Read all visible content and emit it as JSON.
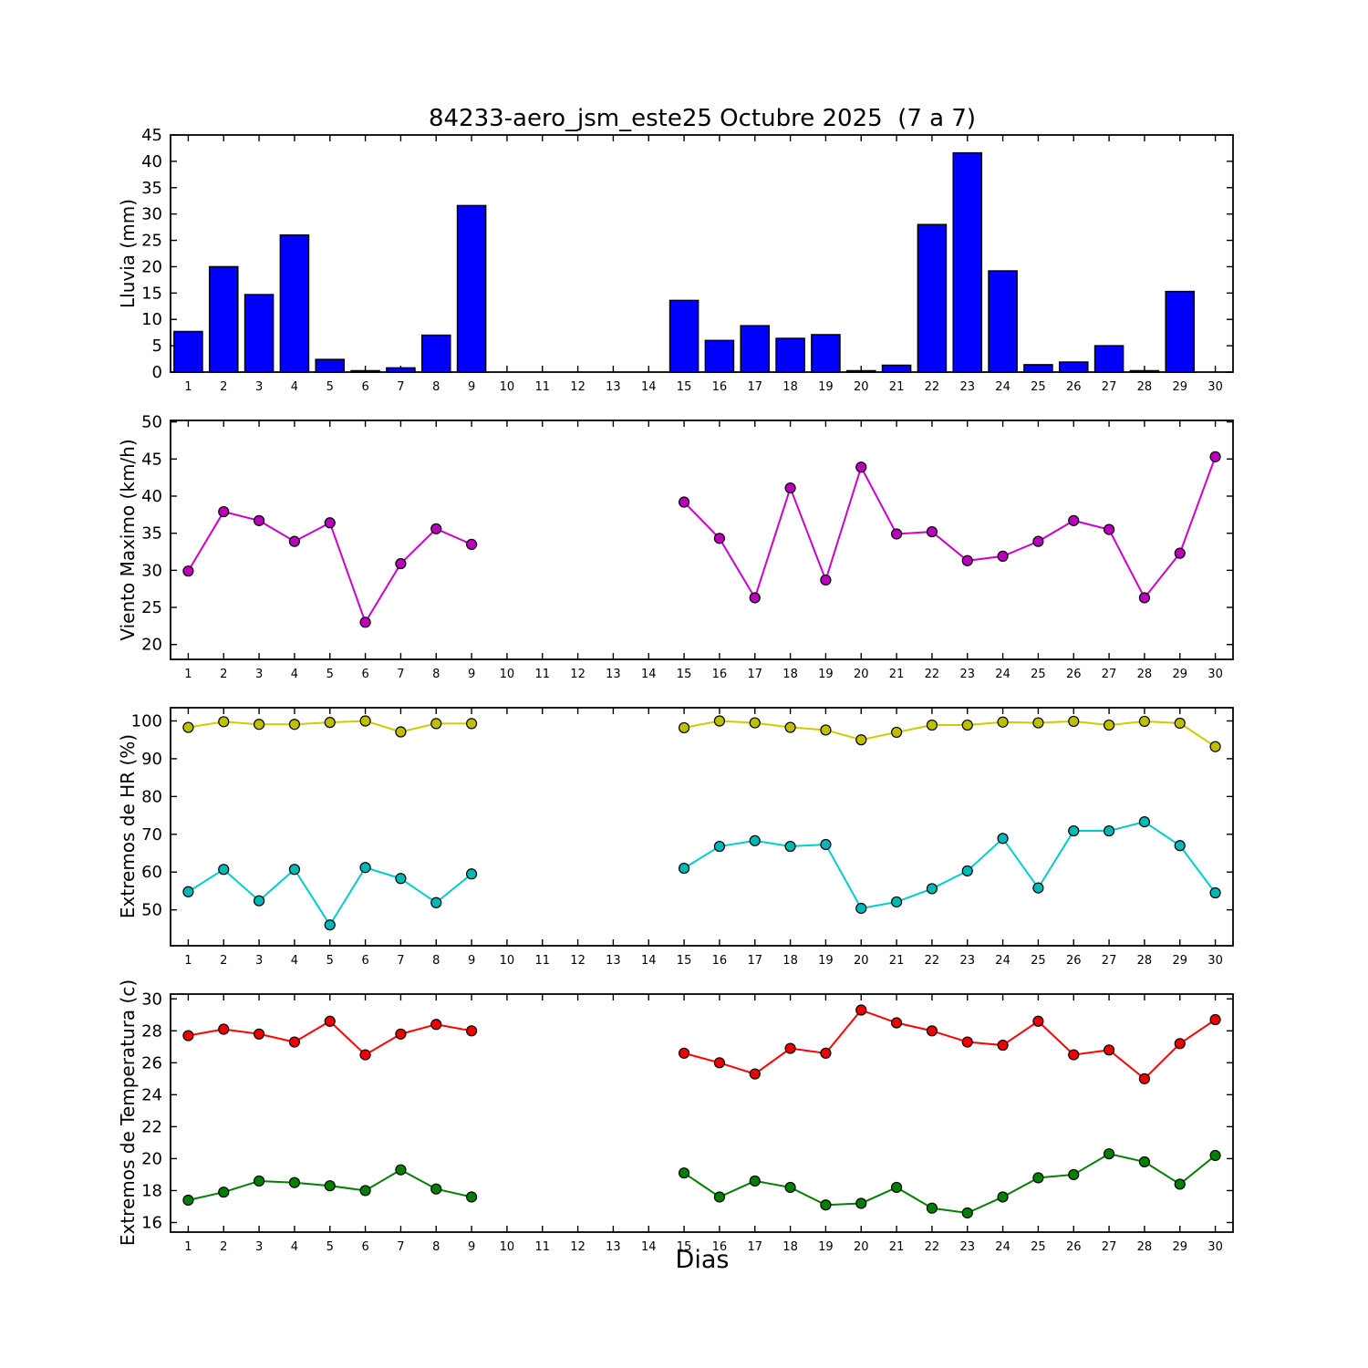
{
  "chart_meta": {
    "title": "84233-aero_jsm_este25 Octubre 2025  (7 a 7)",
    "xlabel": "Dias",
    "background": "#ffffff",
    "axis_color": "#000000",
    "grid": "off",
    "legend": "none"
  },
  "chart_data": [
    {
      "type": "bar",
      "ylabel": "Lluvia (mm)",
      "ylim": [
        0,
        45
      ],
      "yticks": [
        0,
        5,
        10,
        15,
        20,
        25,
        30,
        35,
        40,
        45
      ],
      "categories": [
        1,
        2,
        3,
        4,
        5,
        6,
        7,
        8,
        9,
        10,
        11,
        12,
        13,
        14,
        15,
        16,
        17,
        18,
        19,
        20,
        21,
        22,
        23,
        24,
        25,
        26,
        27,
        28,
        29,
        30
      ],
      "series": [
        {
          "name": "lluvia",
          "color": "#0000ff",
          "edge": "#000000",
          "values": [
            7.7,
            20,
            14.7,
            26,
            2.4,
            0.1,
            0.8,
            7,
            31.6,
            null,
            null,
            null,
            null,
            null,
            13.6,
            6,
            8.8,
            6.4,
            7.1,
            0.2,
            1.3,
            28,
            41.6,
            19.2,
            1.4,
            1.9,
            5,
            0.2,
            15.3,
            null
          ]
        }
      ]
    },
    {
      "type": "line",
      "ylabel": "Viento Maximo (km/h)",
      "ylim": [
        18,
        50.2
      ],
      "yticks": [
        20,
        25,
        30,
        35,
        40,
        45,
        50
      ],
      "categories": [
        1,
        2,
        3,
        4,
        5,
        6,
        7,
        8,
        9,
        10,
        11,
        12,
        13,
        14,
        15,
        16,
        17,
        18,
        19,
        20,
        21,
        22,
        23,
        24,
        25,
        26,
        27,
        28,
        29,
        30
      ],
      "series": [
        {
          "name": "viento-maximo",
          "color": "#cc00cc",
          "marker": "#bb00bb",
          "values": [
            29.9,
            37.9,
            36.7,
            33.9,
            36.4,
            23,
            30.9,
            35.6,
            33.5,
            null,
            null,
            null,
            null,
            null,
            39.2,
            34.3,
            26.3,
            41.1,
            28.7,
            43.9,
            34.9,
            35.2,
            31.3,
            31.9,
            33.9,
            36.7,
            35.5,
            26.3,
            32.3,
            45.3
          ]
        }
      ]
    },
    {
      "type": "line",
      "ylabel": "Extremos de HR (%)",
      "ylim": [
        40.5,
        103.5
      ],
      "yticks": [
        50,
        60,
        70,
        80,
        90,
        100
      ],
      "categories": [
        1,
        2,
        3,
        4,
        5,
        6,
        7,
        8,
        9,
        10,
        11,
        12,
        13,
        14,
        15,
        16,
        17,
        18,
        19,
        20,
        21,
        22,
        23,
        24,
        25,
        26,
        27,
        28,
        29,
        30
      ],
      "series": [
        {
          "name": "hr-maxima",
          "color": "#cccc00",
          "marker": "#bfbf00",
          "values": [
            98.3,
            99.8,
            99.1,
            99.1,
            99.6,
            100,
            97.1,
            99.3,
            99.3,
            null,
            null,
            null,
            null,
            null,
            98.2,
            100,
            99.5,
            98.3,
            97.6,
            95,
            97,
            98.9,
            98.9,
            99.7,
            99.5,
            99.9,
            98.9,
            99.9,
            99.4,
            93.2
          ]
        },
        {
          "name": "hr-minima",
          "color": "#00cccc",
          "marker": "#00b8b8",
          "values": [
            54.8,
            60.7,
            52.4,
            60.7,
            46,
            61.2,
            58.3,
            51.9,
            59.5,
            null,
            null,
            null,
            null,
            null,
            61,
            66.8,
            68.3,
            66.8,
            67.3,
            50.4,
            52.1,
            55.6,
            60.3,
            68.9,
            55.8,
            70.9,
            70.9,
            73.3,
            67,
            54.5
          ]
        }
      ]
    },
    {
      "type": "line",
      "ylabel": "Extremos de Temperatura (c)",
      "ylim": [
        15.4,
        30.3
      ],
      "yticks": [
        16,
        18,
        20,
        22,
        24,
        26,
        28,
        30
      ],
      "categories": [
        1,
        2,
        3,
        4,
        5,
        6,
        7,
        8,
        9,
        10,
        11,
        12,
        13,
        14,
        15,
        16,
        17,
        18,
        19,
        20,
        21,
        22,
        23,
        24,
        25,
        26,
        27,
        28,
        29,
        30
      ],
      "series": [
        {
          "name": "temperatura-maxima",
          "color": "#ff0000",
          "marker": "#ee0000",
          "values": [
            27.7,
            28.1,
            27.8,
            27.3,
            28.6,
            26.5,
            27.8,
            28.4,
            28,
            null,
            null,
            null,
            null,
            null,
            26.6,
            26,
            25.3,
            26.9,
            26.6,
            29.3,
            28.5,
            28,
            27.3,
            27.1,
            28.6,
            26.5,
            26.8,
            25,
            27.2,
            28.7
          ]
        },
        {
          "name": "temperatura-minima",
          "color": "#008000",
          "marker": "#008000",
          "values": [
            17.4,
            17.9,
            18.6,
            18.5,
            18.3,
            18,
            19.3,
            18.1,
            17.6,
            null,
            null,
            null,
            null,
            null,
            19.1,
            17.6,
            18.6,
            18.2,
            17.1,
            17.2,
            18.2,
            16.9,
            16.6,
            17.6,
            18.8,
            19,
            20.3,
            19.8,
            18.4,
            20.2
          ]
        }
      ]
    }
  ]
}
